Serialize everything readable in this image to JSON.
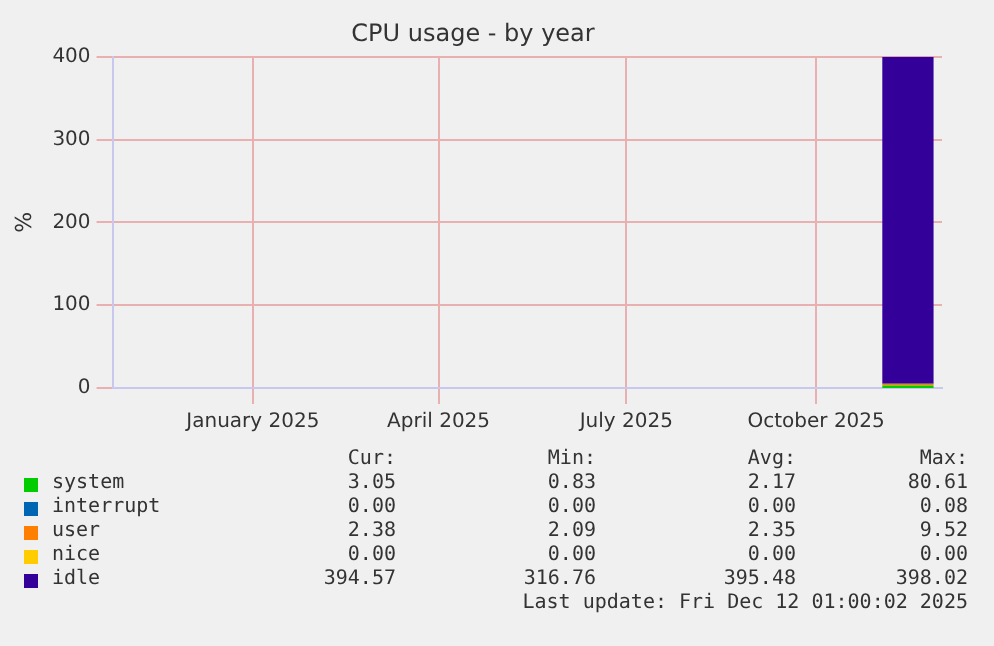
{
  "chart_data": {
    "type": "area",
    "stacked": true,
    "title": "CPU usage - by year",
    "ylabel": "%",
    "x": [
      "2025-11-17",
      "2025-11-24",
      "2025-12-01",
      "2025-12-08",
      "2025-12-12"
    ],
    "series": [
      {
        "name": "system",
        "color": "#00cc00",
        "values": [
          3,
          3,
          3,
          3,
          3
        ]
      },
      {
        "name": "interrupt",
        "color": "#0066b3",
        "values": [
          null,
          null,
          null,
          null,
          null
        ]
      },
      {
        "name": "user",
        "color": "#ff8000",
        "values": [
          2,
          2,
          2,
          2,
          2
        ]
      },
      {
        "name": "nice",
        "color": "#ffcc00",
        "values": [
          null,
          null,
          null,
          null,
          null
        ]
      },
      {
        "name": "idle",
        "color": "#330099",
        "values": [
          395,
          395,
          395,
          395,
          395
        ]
      }
    ],
    "xlim": [
      "2024-11-09",
      "2025-12-16"
    ],
    "xticks": [
      {
        "value": "2025-01-16",
        "label": "January 2025"
      },
      {
        "value": "2025-04-16",
        "label": "April 2025"
      },
      {
        "value": "2025-07-16",
        "label": "July 2025"
      },
      {
        "value": "2025-10-16",
        "label": "October 2025"
      }
    ],
    "ylim": [
      0,
      400
    ],
    "yticks": [
      0,
      100,
      200,
      300,
      400
    ],
    "grid": true,
    "legend": "bottom",
    "annotations": [
      "Cur:",
      "Min:",
      "Avg:",
      "Max:",
      "3.05",
      "0.83",
      "2.17",
      "80.61",
      "0.00",
      "0.00",
      "0.00",
      "0.08",
      "2.38",
      "2.09",
      "2.35",
      "9.52",
      "0.00",
      "0.00",
      "0.00",
      "0.00",
      "394.57",
      "316.76",
      "395.48",
      "398.02",
      "Last update: Fri Dec 12 01:00:02 2025"
    ]
  }
}
